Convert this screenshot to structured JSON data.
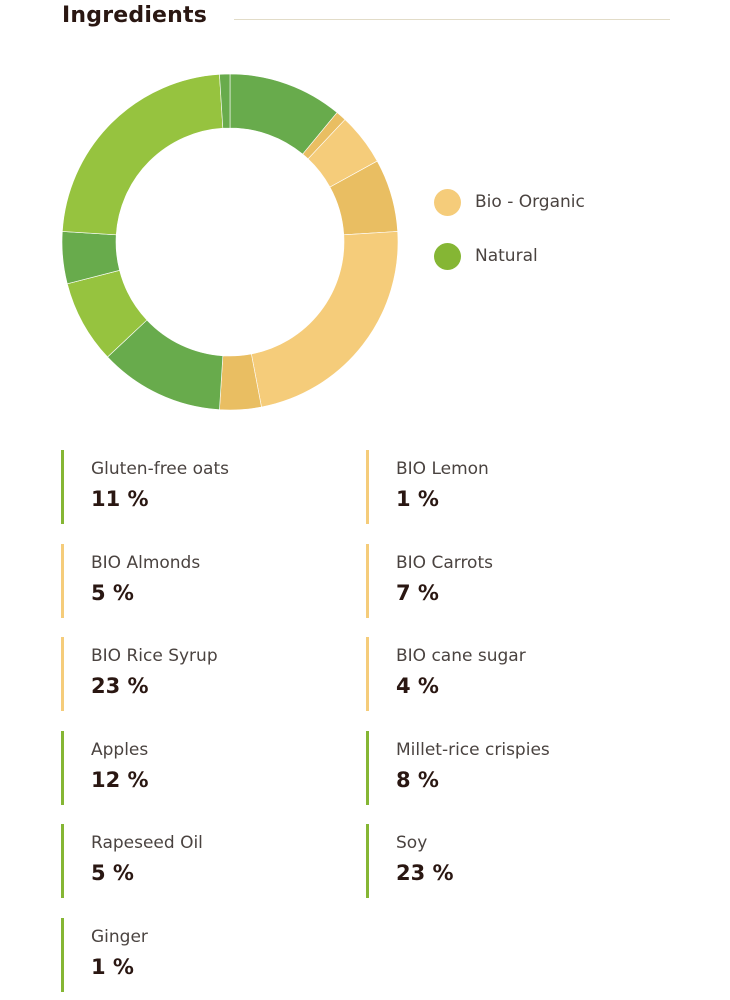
{
  "section": {
    "title": "Ingredients"
  },
  "colors": {
    "organic": "#f5cc7a",
    "organic_shade": "#e9be62",
    "natural": "#85b634",
    "natural_light": "#96c33f",
    "natural_dark": "#68ab4c"
  },
  "chart_data": {
    "type": "pie",
    "donut": true,
    "title": "",
    "legend": [
      "Bio - Organic",
      "Natural"
    ],
    "legend_placement": "right",
    "slices": [
      {
        "label": "Gluten-free oats",
        "value": 11,
        "group": "Natural",
        "color": "#68ab4c"
      },
      {
        "label": "BIO Lemon",
        "value": 1,
        "group": "Bio - Organic",
        "color": "#e9be62"
      },
      {
        "label": "BIO Almonds",
        "value": 5,
        "group": "Bio - Organic",
        "color": "#f5cc7a"
      },
      {
        "label": "BIO Carrots",
        "value": 7,
        "group": "Bio - Organic",
        "color": "#e9be62"
      },
      {
        "label": "BIO Rice Syrup",
        "value": 23,
        "group": "Bio - Organic",
        "color": "#f5cc7a"
      },
      {
        "label": "BIO cane sugar",
        "value": 4,
        "group": "Bio - Organic",
        "color": "#e9be62"
      },
      {
        "label": "Apples",
        "value": 12,
        "group": "Natural",
        "color": "#68ab4c"
      },
      {
        "label": "Millet-rice crispies",
        "value": 8,
        "group": "Natural",
        "color": "#96c33f"
      },
      {
        "label": "Rapeseed Oil",
        "value": 5,
        "group": "Natural",
        "color": "#68ab4c"
      },
      {
        "label": "Soy",
        "value": 23,
        "group": "Natural",
        "color": "#96c33f"
      },
      {
        "label": "Ginger",
        "value": 1,
        "group": "Natural",
        "color": "#68ab4c"
      }
    ]
  },
  "legend": {
    "organic_label": "Bio - Organic",
    "natural_label": "Natural"
  },
  "ingredients": [
    {
      "name": "Gluten-free oats",
      "percent": "11 %",
      "group": "natural"
    },
    {
      "name": "BIO Lemon",
      "percent": "1 %",
      "group": "organic"
    },
    {
      "name": "BIO Almonds",
      "percent": "5 %",
      "group": "organic"
    },
    {
      "name": "BIO Carrots",
      "percent": "7 %",
      "group": "organic"
    },
    {
      "name": "BIO Rice Syrup",
      "percent": "23 %",
      "group": "organic"
    },
    {
      "name": "BIO cane sugar",
      "percent": "4 %",
      "group": "organic"
    },
    {
      "name": "Apples",
      "percent": "12 %",
      "group": "natural"
    },
    {
      "name": "Millet-rice crispies",
      "percent": "8 %",
      "group": "natural"
    },
    {
      "name": "Rapeseed Oil",
      "percent": "5 %",
      "group": "natural"
    },
    {
      "name": "Soy",
      "percent": "23 %",
      "group": "natural"
    },
    {
      "name": "Ginger",
      "percent": "1 %",
      "group": "natural"
    }
  ]
}
